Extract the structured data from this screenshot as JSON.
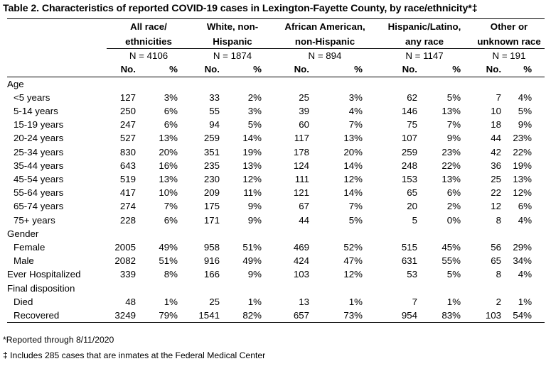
{
  "title": "Table 2. Characteristics of reported COVID-19 cases in Lexington-Fayette County, by race/ethnicity*‡",
  "groups": [
    {
      "line1": "All race/",
      "line2": "ethnicities",
      "n": "N = 4106"
    },
    {
      "line1": "White, non-",
      "line2": "Hispanic",
      "n": "N = 1874"
    },
    {
      "line1": "African American,",
      "line2": "non-Hispanic",
      "n": "N = 894"
    },
    {
      "line1": "Hispanic/Latino,",
      "line2": "any race",
      "n": "N = 1147"
    },
    {
      "line1": "Other or",
      "line2": "unknown race",
      "n": "N = 191"
    }
  ],
  "sub_no": "No.",
  "sub_pct": "%",
  "sections": {
    "age": "Age",
    "gender": "Gender",
    "final": "Final disposition"
  },
  "rows": {
    "age": [
      {
        "label": "<5 years",
        "v": [
          "127",
          "3%",
          "33",
          "2%",
          "25",
          "3%",
          "62",
          "5%",
          "7",
          "4%"
        ]
      },
      {
        "label": "5-14 years",
        "v": [
          "250",
          "6%",
          "55",
          "3%",
          "39",
          "4%",
          "146",
          "13%",
          "10",
          "5%"
        ]
      },
      {
        "label": "15-19 years",
        "v": [
          "247",
          "6%",
          "94",
          "5%",
          "60",
          "7%",
          "75",
          "7%",
          "18",
          "9%"
        ]
      },
      {
        "label": "20-24 years",
        "v": [
          "527",
          "13%",
          "259",
          "14%",
          "117",
          "13%",
          "107",
          "9%",
          "44",
          "23%"
        ]
      },
      {
        "label": "25-34 years",
        "v": [
          "830",
          "20%",
          "351",
          "19%",
          "178",
          "20%",
          "259",
          "23%",
          "42",
          "22%"
        ]
      },
      {
        "label": "35-44 years",
        "v": [
          "643",
          "16%",
          "235",
          "13%",
          "124",
          "14%",
          "248",
          "22%",
          "36",
          "19%"
        ]
      },
      {
        "label": "45-54 years",
        "v": [
          "519",
          "13%",
          "230",
          "12%",
          "111",
          "12%",
          "153",
          "13%",
          "25",
          "13%"
        ]
      },
      {
        "label": "55-64 years",
        "v": [
          "417",
          "10%",
          "209",
          "11%",
          "121",
          "14%",
          "65",
          "6%",
          "22",
          "12%"
        ]
      },
      {
        "label": "65-74 years",
        "v": [
          "274",
          "7%",
          "175",
          "9%",
          "67",
          "7%",
          "20",
          "2%",
          "12",
          "6%"
        ]
      },
      {
        "label": "75+ years",
        "v": [
          "228",
          "6%",
          "171",
          "9%",
          "44",
          "5%",
          "5",
          "0%",
          "8",
          "4%"
        ]
      }
    ],
    "gender": [
      {
        "label": "Female",
        "v": [
          "2005",
          "49%",
          "958",
          "51%",
          "469",
          "52%",
          "515",
          "45%",
          "56",
          "29%"
        ]
      },
      {
        "label": "Male",
        "v": [
          "2082",
          "51%",
          "916",
          "49%",
          "424",
          "47%",
          "631",
          "55%",
          "65",
          "34%"
        ]
      }
    ],
    "hosp": {
      "label": "Ever Hospitalized",
      "v": [
        "339",
        "8%",
        "166",
        "9%",
        "103",
        "12%",
        "53",
        "5%",
        "8",
        "4%"
      ]
    },
    "final": [
      {
        "label": "Died",
        "v": [
          "48",
          "1%",
          "25",
          "1%",
          "13",
          "1%",
          "7",
          "1%",
          "2",
          "1%"
        ]
      },
      {
        "label": "Recovered",
        "v": [
          "3249",
          "79%",
          "1541",
          "82%",
          "657",
          "73%",
          "954",
          "83%",
          "103",
          "54%"
        ]
      }
    ]
  },
  "footnotes": {
    "f1": "*Reported through 8/11/2020",
    "f2": "‡ Includes 285 cases that are inmates at the Federal Medical Center"
  }
}
